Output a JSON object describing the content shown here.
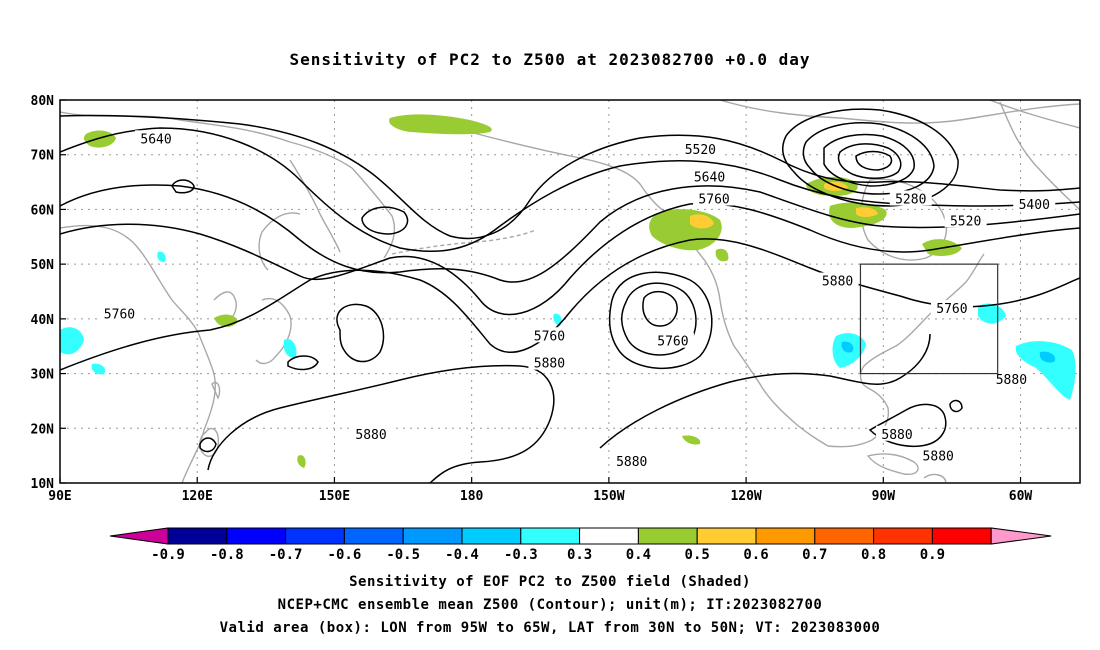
{
  "title": "Sensitivity of PC2 to Z500 at 2023082700 +0.0 day",
  "map": {
    "lat_labels": [
      "80N",
      "70N",
      "60N",
      "50N",
      "40N",
      "30N",
      "20N",
      "10N"
    ],
    "lon_labels": [
      "90E",
      "120E",
      "150E",
      "180",
      "150W",
      "120W",
      "90W",
      "60W"
    ],
    "lat_values": [
      80,
      70,
      60,
      50,
      40,
      30,
      20,
      10
    ],
    "lon_values": [
      90,
      120,
      150,
      180,
      210,
      240,
      270,
      300
    ],
    "lon_range": [
      90,
      313
    ],
    "lat_range": [
      10,
      80
    ],
    "grid": true,
    "colors": {
      "coast": "#a8a8a8",
      "contour": "#000000",
      "grid": "#9a9a9a",
      "pos_03": "#99cc33",
      "pos_04": "#ffcc33",
      "neg_03": "#33ffff",
      "neg_04": "#00ccff"
    }
  },
  "contour_labels": [
    {
      "text": "5640",
      "lon": 111,
      "lat": 73
    },
    {
      "text": "5520",
      "lon": 230,
      "lat": 71
    },
    {
      "text": "5640",
      "lon": 232,
      "lat": 66
    },
    {
      "text": "5760",
      "lon": 233,
      "lat": 62
    },
    {
      "text": "5280",
      "lon": 276,
      "lat": 62
    },
    {
      "text": "5400",
      "lon": 303,
      "lat": 61
    },
    {
      "text": "5520",
      "lon": 288,
      "lat": 58
    },
    {
      "text": "5880",
      "lon": 260,
      "lat": 47
    },
    {
      "text": "5760",
      "lon": 285,
      "lat": 42
    },
    {
      "text": "5760",
      "lon": 103,
      "lat": 41
    },
    {
      "text": "5760",
      "lon": 197,
      "lat": 37
    },
    {
      "text": "5760",
      "lon": 224,
      "lat": 36
    },
    {
      "text": "5880",
      "lon": 197,
      "lat": 32
    },
    {
      "text": "5880",
      "lon": 298,
      "lat": 29
    },
    {
      "text": "5880",
      "lon": 158,
      "lat": 19
    },
    {
      "text": "5880",
      "lon": 273,
      "lat": 19
    },
    {
      "text": "5880",
      "lon": 282,
      "lat": 15
    },
    {
      "text": "5880",
      "lon": 215,
      "lat": 14
    }
  ],
  "valid_box": {
    "lon_min": 265,
    "lon_max": 295,
    "lat_min": 30,
    "lat_max": 50
  },
  "colorbar": {
    "labels": [
      "-0.9",
      "-0.8",
      "-0.7",
      "-0.6",
      "-0.5",
      "-0.4",
      "-0.3",
      "0.3",
      "0.4",
      "0.5",
      "0.6",
      "0.7",
      "0.8",
      "0.9"
    ],
    "colors": [
      "#000099",
      "#0000ff",
      "#0033ff",
      "#0066ff",
      "#0099ff",
      "#00ccff",
      "#33ffff",
      "#ffffff",
      "#99cc33",
      "#ffcc33",
      "#ff9900",
      "#ff6600",
      "#ff3300",
      "#ff0000"
    ],
    "low_cap": "#cc0099",
    "high_cap": "#ff99cc"
  },
  "captions": [
    "Sensitivity of EOF PC2 to Z500 field (Shaded)",
    "NCEP+CMC ensemble mean Z500 (Contour); unit(m); IT:2023082700",
    "Valid area (box): LON from 95W to 65W, LAT from 30N to 50N; VT: 2023083000"
  ]
}
